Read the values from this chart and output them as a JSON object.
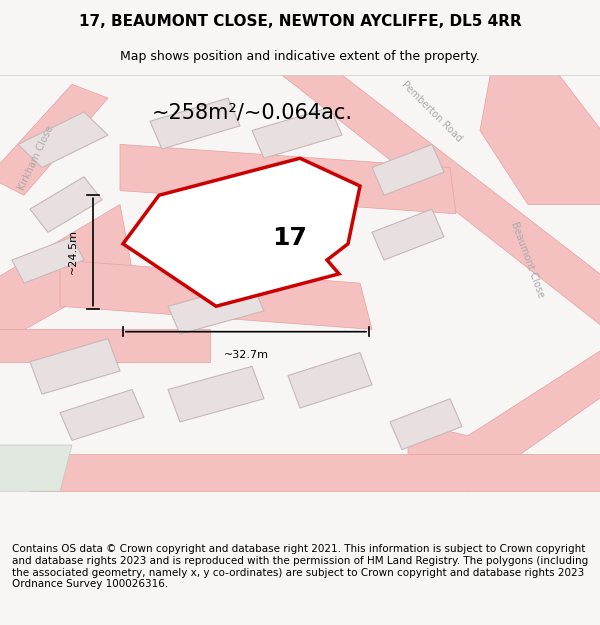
{
  "title": "17, BEAUMONT CLOSE, NEWTON AYCLIFFE, DL5 4RR",
  "subtitle": "Map shows position and indicative extent of the property.",
  "area_text": "~258m²/~0.064ac.",
  "number_label": "17",
  "dim_vertical": "~24.5m",
  "dim_horizontal": "~32.7m",
  "footer_text": "Contains OS data © Crown copyright and database right 2021. This information is subject to Crown copyright and database rights 2023 and is reproduced with the permission of HM Land Registry. The polygons (including the associated geometry, namely x, y co-ordinates) are subject to Crown copyright and database rights 2023 Ordnance Survey 100026316.",
  "bg_color": "#f5f0f0",
  "map_bg": "#f8f5f5",
  "road_color": "#f5c0c0",
  "road_border_color": "#e8a0a0",
  "building_color": "#e8e0e0",
  "building_border": "#c8b8b8",
  "plot_color": "#cc0000",
  "plot_fill": "none",
  "plot_linewidth": 2.5,
  "street_label_color": "#aaaaaa",
  "annotation_color": "#111111",
  "footer_fontsize": 7.5,
  "title_fontsize": 11,
  "subtitle_fontsize": 9
}
